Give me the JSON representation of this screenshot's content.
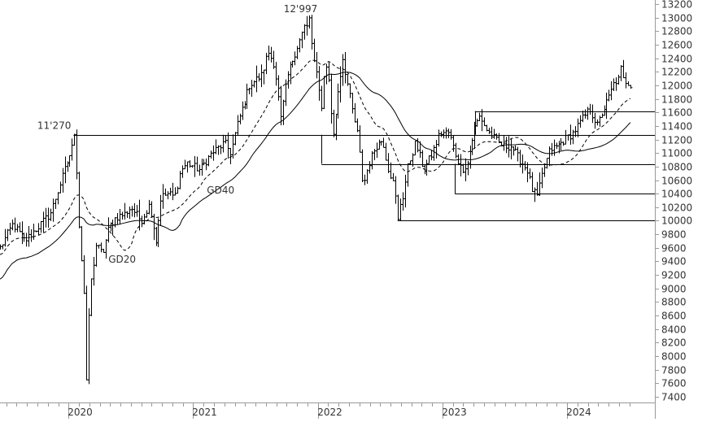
{
  "chart_data": {
    "type": "ohlc",
    "title": "",
    "xlabel": "",
    "ylabel": "",
    "ylim": [
      7400,
      13200
    ],
    "y_ticks": [
      7400,
      7600,
      7800,
      8000,
      8200,
      8400,
      8600,
      8800,
      9000,
      9200,
      9400,
      9600,
      9800,
      10000,
      10200,
      10400,
      10600,
      10800,
      11000,
      11200,
      11400,
      11600,
      11800,
      12000,
      12200,
      12400,
      12600,
      12800,
      13000,
      13200
    ],
    "x_range": [
      2019.45,
      2024.58
    ],
    "x_labels": [
      {
        "label": "2020",
        "year": 2020
      },
      {
        "label": "2021",
        "year": 2021
      },
      {
        "label": "2022",
        "year": 2022
      },
      {
        "label": "2023",
        "year": 2023
      },
      {
        "label": "2024",
        "year": 2024
      }
    ],
    "price_series": {
      "name": "",
      "anchors": [
        [
          2019.45,
          9600
        ],
        [
          2019.55,
          9950
        ],
        [
          2019.65,
          9700
        ],
        [
          2019.75,
          9900
        ],
        [
          2019.85,
          10100
        ],
        [
          2019.95,
          10650
        ],
        [
          2020.04,
          11150
        ],
        [
          2020.06,
          11000
        ],
        [
          2020.08,
          10050
        ],
        [
          2020.12,
          9000
        ],
        [
          2020.15,
          8300
        ],
        [
          2020.18,
          9100
        ],
        [
          2020.22,
          9650
        ],
        [
          2020.27,
          9500
        ],
        [
          2020.32,
          9900
        ],
        [
          2020.38,
          10050
        ],
        [
          2020.45,
          10100
        ],
        [
          2020.5,
          10200
        ],
        [
          2020.58,
          10000
        ],
        [
          2020.65,
          10250
        ],
        [
          2020.7,
          9700
        ],
        [
          2020.74,
          10350
        ],
        [
          2020.8,
          10400
        ],
        [
          2020.85,
          10350
        ],
        [
          2020.9,
          10750
        ],
        [
          2020.95,
          10850
        ],
        [
          2021.05,
          10750
        ],
        [
          2021.15,
          11000
        ],
        [
          2021.25,
          11150
        ],
        [
          2021.3,
          11000
        ],
        [
          2021.35,
          11400
        ],
        [
          2021.45,
          12000
        ],
        [
          2021.55,
          12150
        ],
        [
          2021.6,
          12500
        ],
        [
          2021.65,
          12300
        ],
        [
          2021.7,
          11500
        ],
        [
          2021.75,
          12100
        ],
        [
          2021.8,
          12400
        ],
        [
          2021.85,
          12650
        ],
        [
          2021.9,
          12900
        ],
        [
          2021.94,
          12750
        ],
        [
          2021.97,
          12300
        ],
        [
          2022.0,
          12100
        ],
        [
          2022.03,
          11600
        ],
        [
          2022.05,
          12300
        ],
        [
          2022.08,
          12200
        ],
        [
          2022.12,
          11200
        ],
        [
          2022.16,
          11900
        ],
        [
          2022.2,
          12400
        ],
        [
          2022.24,
          12000
        ],
        [
          2022.28,
          11600
        ],
        [
          2022.32,
          11250
        ],
        [
          2022.36,
          10500
        ],
        [
          2022.4,
          10800
        ],
        [
          2022.46,
          11100
        ],
        [
          2022.52,
          11200
        ],
        [
          2022.56,
          10800
        ],
        [
          2022.6,
          10600
        ],
        [
          2022.64,
          10150
        ],
        [
          2022.68,
          10350
        ],
        [
          2022.72,
          10800
        ],
        [
          2022.78,
          11150
        ],
        [
          2022.85,
          10750
        ],
        [
          2022.92,
          11000
        ],
        [
          2022.98,
          11300
        ],
        [
          2023.05,
          11300
        ],
        [
          2023.1,
          11000
        ],
        [
          2023.15,
          10750
        ],
        [
          2023.2,
          10850
        ],
        [
          2023.26,
          11400
        ],
        [
          2023.3,
          11550
        ],
        [
          2023.35,
          11350
        ],
        [
          2023.42,
          11200
        ],
        [
          2023.48,
          11100
        ],
        [
          2023.55,
          11100
        ],
        [
          2023.62,
          10900
        ],
        [
          2023.68,
          10750
        ],
        [
          2023.72,
          10450
        ],
        [
          2023.76,
          10350
        ],
        [
          2023.8,
          10700
        ],
        [
          2023.86,
          11050
        ],
        [
          2023.92,
          11100
        ],
        [
          2023.98,
          11200
        ],
        [
          2024.05,
          11300
        ],
        [
          2024.12,
          11500
        ],
        [
          2024.18,
          11650
        ],
        [
          2024.24,
          11400
        ],
        [
          2024.28,
          11600
        ],
        [
          2024.33,
          11800
        ],
        [
          2024.38,
          12050
        ],
        [
          2024.43,
          12100
        ],
        [
          2024.48,
          12050
        ],
        [
          2024.52,
          12000
        ]
      ],
      "extremes": [
        {
          "x": 2020.04,
          "y": 11270
        },
        {
          "x": 2020.15,
          "y": 7650
        },
        {
          "x": 2021.94,
          "y": 12997
        },
        {
          "x": 2022.64,
          "y": 10020
        },
        {
          "x": 2024.44,
          "y": 12280
        }
      ]
    },
    "moving_averages": [
      {
        "name": "GD20",
        "style": "dashed",
        "window": 20
      },
      {
        "name": "GD40",
        "style": "solid",
        "window": 40
      }
    ],
    "annotations": [
      {
        "text": "11'270",
        "x": 2020.04,
        "y": 11270,
        "role": "peak"
      },
      {
        "text": "12'997",
        "x": 2021.94,
        "y": 12997,
        "role": "peak"
      },
      {
        "text": "GD40",
        "x": 2021.22,
        "y": 10400,
        "role": "ma-label"
      },
      {
        "text": "GD20",
        "x": 2020.43,
        "y": 9380,
        "role": "ma-label"
      }
    ],
    "horizontal_levels": [
      {
        "value": 11270,
        "from": 2020.04
      },
      {
        "value": 10840,
        "from": 2022.03
      },
      {
        "value": 10400,
        "from": 2023.1
      },
      {
        "value": 10000,
        "from": 2022.64
      },
      {
        "value": 11620,
        "from": 2023.26
      }
    ],
    "level_connectors": [
      {
        "x": 2022.03,
        "from": 11270,
        "to": 10840
      },
      {
        "x": 2023.1,
        "from": 10840,
        "to": 10400
      },
      {
        "x": 2023.26,
        "from": 11270,
        "to": 11620
      },
      {
        "x": 2022.64,
        "from": 10000,
        "to": 10080
      }
    ],
    "colors": {
      "bars": "#000000",
      "axis": "#999999",
      "text": "#333333",
      "levels": "#000000"
    },
    "grid": false,
    "legend": "none"
  }
}
